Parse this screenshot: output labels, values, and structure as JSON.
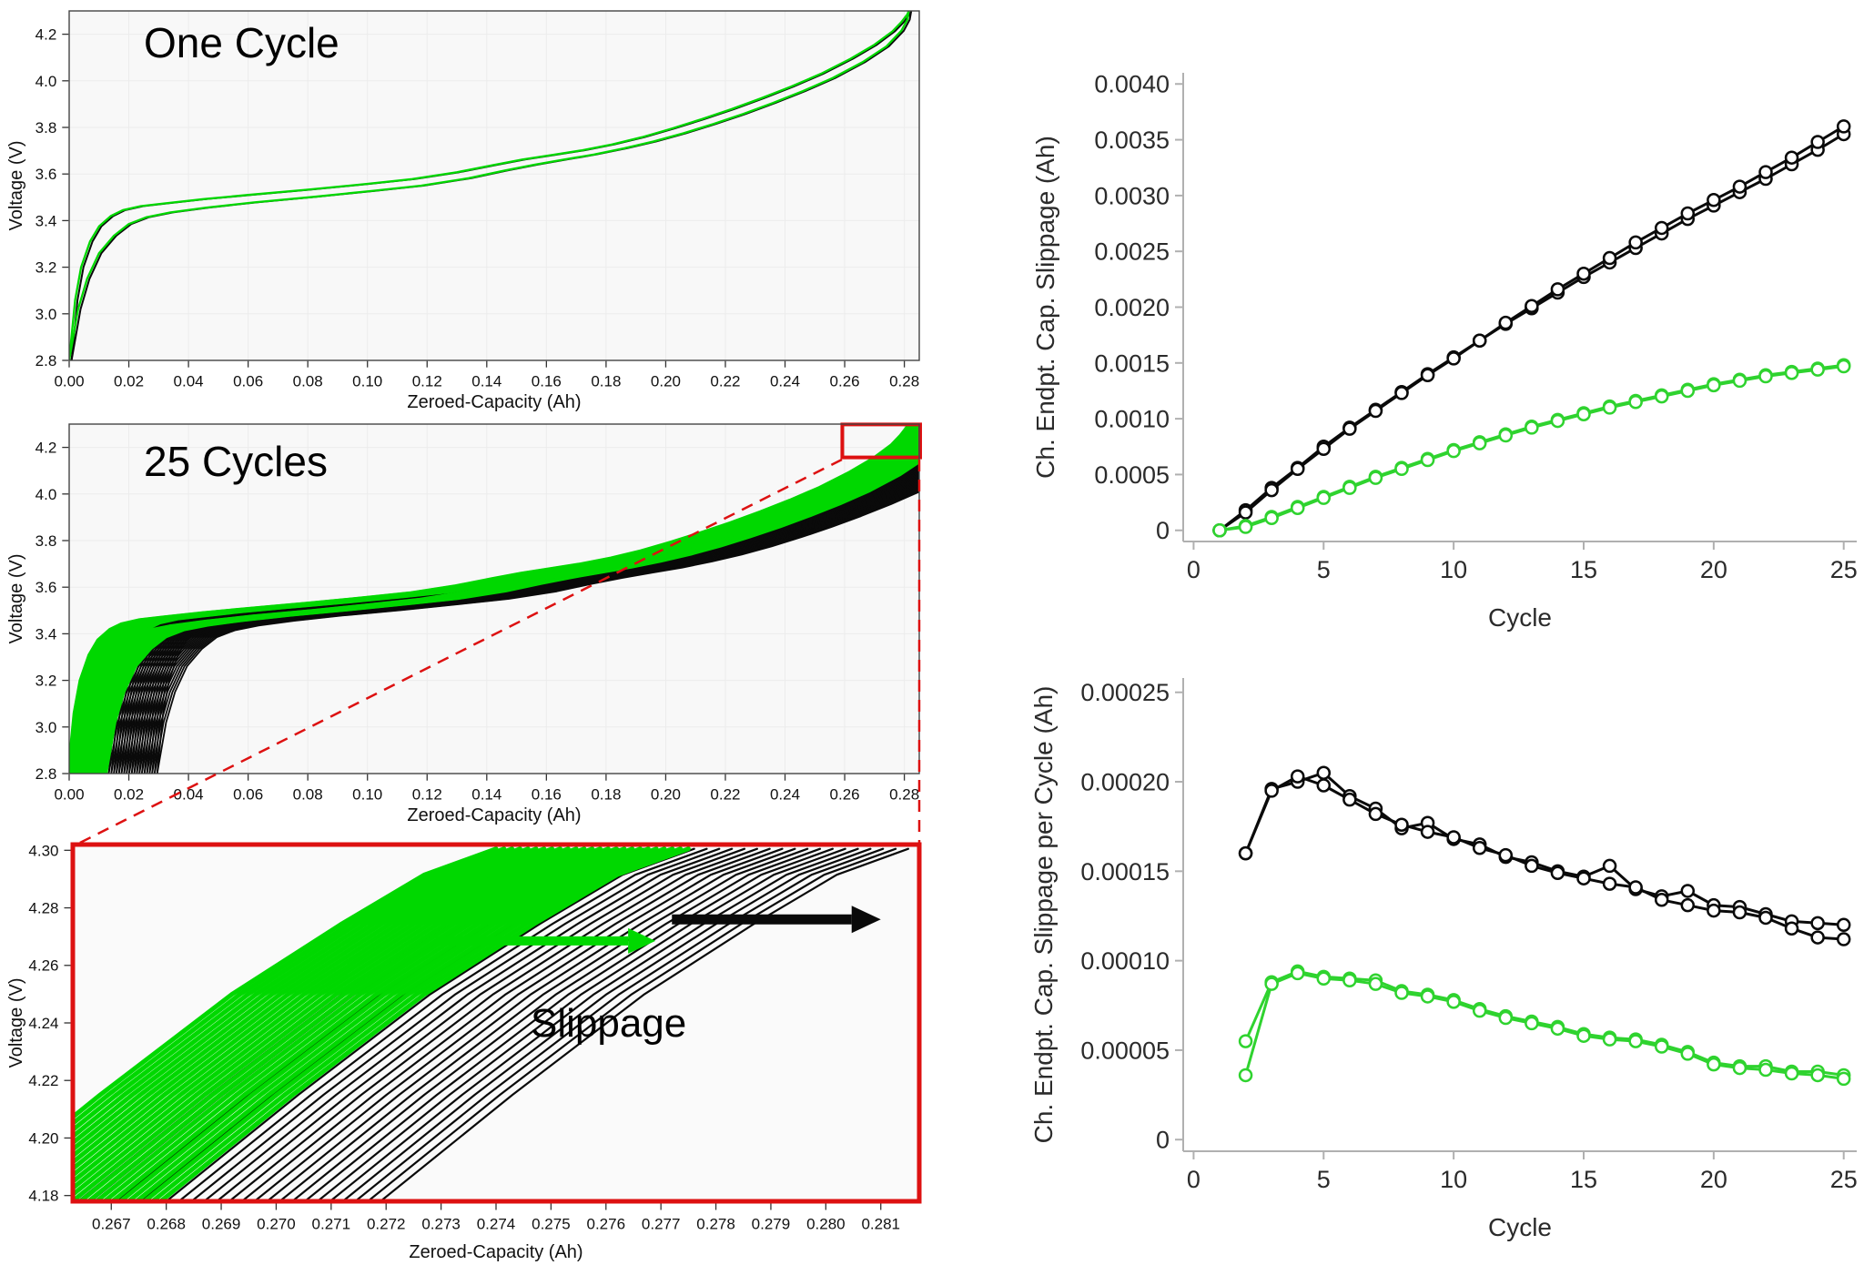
{
  "colors": {
    "green_left": "#00d800",
    "green_right": "#2fd32f",
    "black": "#0a0a0a",
    "red": "#dd1111",
    "grid": "#ececec",
    "axis_gray": "#b0b0b0"
  },
  "curves": {
    "upper": [
      [
        0,
        2.8
      ],
      [
        0.002,
        3.06
      ],
      [
        0.004,
        3.2
      ],
      [
        0.007,
        3.31
      ],
      [
        0.01,
        3.375
      ],
      [
        0.014,
        3.42
      ],
      [
        0.018,
        3.445
      ],
      [
        0.024,
        3.462
      ],
      [
        0.032,
        3.474
      ],
      [
        0.045,
        3.492
      ],
      [
        0.06,
        3.51
      ],
      [
        0.08,
        3.533
      ],
      [
        0.1,
        3.558
      ],
      [
        0.115,
        3.578
      ],
      [
        0.13,
        3.608
      ],
      [
        0.142,
        3.638
      ],
      [
        0.152,
        3.662
      ],
      [
        0.162,
        3.682
      ],
      [
        0.172,
        3.702
      ],
      [
        0.182,
        3.727
      ],
      [
        0.192,
        3.758
      ],
      [
        0.202,
        3.795
      ],
      [
        0.212,
        3.835
      ],
      [
        0.222,
        3.878
      ],
      [
        0.232,
        3.925
      ],
      [
        0.242,
        3.975
      ],
      [
        0.252,
        4.03
      ],
      [
        0.262,
        4.095
      ],
      [
        0.27,
        4.155
      ],
      [
        0.276,
        4.212
      ],
      [
        0.279,
        4.252
      ],
      [
        0.281,
        4.285
      ],
      [
        0.2815,
        4.3
      ]
    ],
    "lower": [
      [
        0,
        2.8
      ],
      [
        0.003,
        3.02
      ],
      [
        0.006,
        3.15
      ],
      [
        0.01,
        3.26
      ],
      [
        0.015,
        3.335
      ],
      [
        0.02,
        3.385
      ],
      [
        0.026,
        3.415
      ],
      [
        0.034,
        3.435
      ],
      [
        0.046,
        3.456
      ],
      [
        0.062,
        3.478
      ],
      [
        0.082,
        3.502
      ],
      [
        0.102,
        3.528
      ],
      [
        0.118,
        3.55
      ],
      [
        0.134,
        3.582
      ],
      [
        0.146,
        3.615
      ],
      [
        0.156,
        3.64
      ],
      [
        0.166,
        3.662
      ],
      [
        0.176,
        3.684
      ],
      [
        0.186,
        3.71
      ],
      [
        0.196,
        3.74
      ],
      [
        0.206,
        3.775
      ],
      [
        0.216,
        3.815
      ],
      [
        0.226,
        3.858
      ],
      [
        0.236,
        3.905
      ],
      [
        0.246,
        3.956
      ],
      [
        0.256,
        4.012
      ],
      [
        0.266,
        4.08
      ],
      [
        0.274,
        4.148
      ],
      [
        0.279,
        4.215
      ],
      [
        0.281,
        4.262
      ],
      [
        0.2815,
        4.3
      ]
    ],
    "inset_green": [
      [
        0.2631,
        4.158
      ],
      [
        0.2668,
        4.215
      ],
      [
        0.2692,
        4.25
      ],
      [
        0.2712,
        4.2745
      ],
      [
        0.2727,
        4.2915
      ],
      [
        0.274,
        4.3005
      ]
    ],
    "inset_black": [
      [
        0.2651,
        4.158
      ],
      [
        0.2688,
        4.215
      ],
      [
        0.2712,
        4.25
      ],
      [
        0.2732,
        4.2745
      ],
      [
        0.2747,
        4.2915
      ],
      [
        0.276,
        4.3005
      ]
    ]
  },
  "chart_data": [
    {
      "id": "one_cycle",
      "type": "line",
      "title": "One Cycle",
      "xlabel": "Zeroed-Capacity (Ah)",
      "ylabel": "Voltage (V)",
      "xlim": [
        0,
        0.285
      ],
      "ylim": [
        2.8,
        4.3
      ],
      "grid": true,
      "xticks": {
        "values": [
          0,
          0.02,
          0.04,
          0.06,
          0.08,
          0.1,
          0.12,
          0.14,
          0.16,
          0.18,
          0.2,
          0.22,
          0.24,
          0.26,
          0.28
        ],
        "labels": [
          "0.00",
          "0.02",
          "0.04",
          "0.06",
          "0.08",
          "0.10",
          "0.12",
          "0.14",
          "0.16",
          "0.18",
          "0.20",
          "0.22",
          "0.24",
          "0.26",
          "0.28"
        ]
      },
      "yticks": {
        "values": [
          2.8,
          3,
          3.2,
          3.4,
          3.6,
          3.8,
          4,
          4.2
        ],
        "labels": [
          "2.8",
          "3.0",
          "3.2",
          "3.4",
          "3.6",
          "3.8",
          "4.0",
          "4.2"
        ]
      },
      "series": [
        {
          "name": "black-cell-charge",
          "type": "line",
          "base": "upper",
          "dx": 0.0008,
          "color": "#0a0a0a",
          "width": 2
        },
        {
          "name": "black-cell-discharge",
          "type": "line",
          "base": "lower",
          "dx": 0.0008,
          "color": "#0a0a0a",
          "width": 2
        },
        {
          "name": "green-cell-charge",
          "type": "line",
          "base": "upper",
          "dx": 0,
          "color": "#00d800",
          "width": 2.3
        },
        {
          "name": "green-cell-discharge",
          "type": "line",
          "base": "lower",
          "dx": 0,
          "color": "#00d800",
          "width": 2.3
        }
      ]
    },
    {
      "id": "cycles_25",
      "type": "band",
      "title": "25 Cycles",
      "xlabel": "Zeroed-Capacity (Ah)",
      "ylabel": "Voltage (V)",
      "xlim": [
        0,
        0.285
      ],
      "ylim": [
        2.8,
        4.3
      ],
      "grid": true,
      "xticks": {
        "values": [
          0,
          0.02,
          0.04,
          0.06,
          0.08,
          0.1,
          0.12,
          0.14,
          0.16,
          0.18,
          0.2,
          0.22,
          0.24,
          0.26,
          0.28
        ],
        "labels": [
          "0.00",
          "0.02",
          "0.04",
          "0.06",
          "0.08",
          "0.10",
          "0.12",
          "0.14",
          "0.16",
          "0.18",
          "0.20",
          "0.22",
          "0.24",
          "0.26",
          "0.28"
        ]
      },
      "yticks": {
        "values": [
          2.8,
          3,
          3.2,
          3.4,
          3.6,
          3.8,
          4,
          4.2
        ],
        "labels": [
          "2.8",
          "3.0",
          "3.2",
          "3.4",
          "3.6",
          "3.8",
          "4.0",
          "4.2"
        ]
      },
      "series": [
        {
          "name": "black-cell-cycles",
          "type": "band",
          "base": "upper",
          "color": "#0a0a0a",
          "width": 1.8,
          "repeats": 25,
          "dx0": 0.009,
          "dx1": 0.0295
        },
        {
          "name": "black-cell-cycles-lower",
          "type": "band",
          "base": "lower",
          "color": "#0a0a0a",
          "width": 1.8,
          "repeats": 25,
          "dx0": 0.009,
          "dx1": 0.0295
        },
        {
          "name": "green-cell-cycles",
          "type": "band",
          "base": "upper",
          "color": "#00d800",
          "width": 2.2,
          "repeats": 25,
          "dx0": -0.0005,
          "dx1": 0.0125
        },
        {
          "name": "green-cell-cycles-lower",
          "type": "band",
          "base": "lower",
          "color": "#00d800",
          "width": 2.2,
          "repeats": 25,
          "dx0": -0.0005,
          "dx1": 0.0125
        }
      ],
      "annotations": [
        {
          "type": "rect",
          "x": [
            0.2592,
            0.2853
          ],
          "y": [
            4.157,
            4.2985
          ],
          "color": "#dd1111",
          "width": 4
        }
      ]
    },
    {
      "id": "inset_zoom",
      "type": "band",
      "annotation_label": "Slippage",
      "xlabel": "Zeroed-Capacity (Ah)",
      "ylabel": "Voltage (V)",
      "xlim": [
        0.2663,
        0.2817
      ],
      "ylim": [
        4.178,
        4.302
      ],
      "grid": false,
      "xticks": {
        "values": [
          0.267,
          0.268,
          0.269,
          0.27,
          0.271,
          0.272,
          0.273,
          0.274,
          0.275,
          0.276,
          0.277,
          0.278,
          0.279,
          0.28,
          0.281
        ],
        "labels": [
          "0.267",
          "0.268",
          "0.269",
          "0.270",
          "0.271",
          "0.272",
          "0.273",
          "0.274",
          "0.275",
          "0.276",
          "0.277",
          "0.278",
          "0.279",
          "0.280",
          "0.281"
        ]
      },
      "yticks": {
        "values": [
          4.18,
          4.2,
          4.22,
          4.24,
          4.26,
          4.28,
          4.3
        ],
        "labels": [
          "4.18",
          "4.20",
          "4.22",
          "4.24",
          "4.26",
          "4.28",
          "4.30"
        ]
      },
      "series": [
        {
          "name": "black-cell-zoom",
          "type": "band",
          "base": "inset_black",
          "color": "#0a0a0a",
          "width": 2.2,
          "repeats": 25,
          "dx0": 0,
          "dx1": 0.0055
        },
        {
          "name": "green-cell-zoom",
          "type": "band",
          "base": "inset_green",
          "color": "#00d800",
          "width": 5,
          "repeats": 25,
          "dx0": 0,
          "dx1": 0.0035
        }
      ],
      "annotations": [
        {
          "type": "arrow",
          "from": [
            0.2729,
            4.2685
          ],
          "to": [
            0.2769,
            4.2685
          ],
          "color": "#00d800",
          "shaft": 10,
          "head_l": 30,
          "head_w": 28
        },
        {
          "type": "arrow",
          "from": [
            0.2772,
            4.276
          ],
          "to": [
            0.281,
            4.276
          ],
          "color": "#0a0a0a",
          "shaft": 11,
          "head_l": 32,
          "head_w": 30
        }
      ]
    },
    {
      "id": "cum_slippage",
      "type": "line",
      "xlabel": "Cycle",
      "ylabel": "Ch. Endpt. Cap. Slippage (Ah)",
      "xlim": [
        -0.4,
        25.5
      ],
      "ylim": [
        -0.0001,
        0.0041
      ],
      "grid": false,
      "xticks": {
        "values": [
          0,
          5,
          10,
          15,
          20,
          25
        ],
        "labels": [
          "0",
          "5",
          "10",
          "15",
          "20",
          "25"
        ]
      },
      "yticks": {
        "values": [
          0,
          0.0005,
          0.001,
          0.0015,
          0.002,
          0.0025,
          0.003,
          0.0035,
          0.004
        ],
        "labels": [
          "0",
          "0.0005",
          "0.0010",
          "0.0015",
          "0.0020",
          "0.0025",
          "0.0030",
          "0.0035",
          "0.0040"
        ]
      },
      "series": [
        {
          "name": "black-cell-1",
          "type": "line",
          "marker": "circle",
          "marker_r": 6.5,
          "x_start": 1,
          "color": "#0a0a0a",
          "width": 3,
          "values": [
            0,
            0.00018,
            0.00038,
            0.00056,
            0.00075,
            0.00092,
            0.00108,
            0.00124,
            0.0014,
            0.00155,
            0.0017,
            0.00185,
            0.00199,
            0.00213,
            0.00227,
            0.0024,
            0.00253,
            0.00266,
            0.00279,
            0.00291,
            0.00303,
            0.00315,
            0.00328,
            0.00341,
            0.00355
          ]
        },
        {
          "name": "black-cell-2",
          "type": "line",
          "marker": "circle",
          "marker_r": 6.5,
          "x_start": 1,
          "color": "#0a0a0a",
          "width": 3,
          "values": [
            0,
            0.00016,
            0.00036,
            0.00055,
            0.00073,
            0.00091,
            0.00107,
            0.00123,
            0.00139,
            0.00154,
            0.0017,
            0.00186,
            0.00201,
            0.00216,
            0.0023,
            0.00244,
            0.00258,
            0.00271,
            0.00284,
            0.00296,
            0.00308,
            0.00321,
            0.00334,
            0.00348,
            0.00362
          ]
        },
        {
          "name": "green-cell-1",
          "type": "line",
          "marker": "circle",
          "marker_r": 6.5,
          "x_start": 1,
          "color": "#2fd32f",
          "width": 3,
          "values": [
            0,
            4e-05,
            0.00012,
            0.00021,
            0.0003,
            0.00039,
            0.00048,
            0.00056,
            0.00064,
            0.00072,
            0.00079,
            0.00086,
            0.00093,
            0.00099,
            0.00105,
            0.00111,
            0.00116,
            0.00121,
            0.00126,
            0.00131,
            0.00135,
            0.00139,
            0.00142,
            0.00145,
            0.00148
          ]
        },
        {
          "name": "green-cell-2",
          "type": "line",
          "marker": "circle",
          "marker_r": 6.5,
          "x_start": 1,
          "color": "#2fd32f",
          "width": 3,
          "values": [
            0,
            3e-05,
            0.00011,
            0.0002,
            0.00029,
            0.00038,
            0.00047,
            0.00055,
            0.00063,
            0.00071,
            0.00078,
            0.00085,
            0.00092,
            0.00098,
            0.00104,
            0.0011,
            0.00115,
            0.0012,
            0.00125,
            0.0013,
            0.00134,
            0.00138,
            0.00141,
            0.00144,
            0.00147
          ]
        }
      ]
    },
    {
      "id": "per_cycle_slippage",
      "type": "line",
      "xlabel": "Cycle",
      "ylabel": "Ch. Endpt. Cap. Slippage per Cycle (Ah)",
      "xlim": [
        -0.4,
        25.5
      ],
      "ylim": [
        -6.5e-06,
        0.000258
      ],
      "grid": false,
      "xticks": {
        "values": [
          0,
          5,
          10,
          15,
          20,
          25
        ],
        "labels": [
          "0",
          "5",
          "10",
          "15",
          "20",
          "25"
        ]
      },
      "yticks": {
        "values": [
          0,
          5e-05,
          0.0001,
          0.00015,
          0.0002,
          0.00025
        ],
        "labels": [
          "0",
          "0.00005",
          "0.00010",
          "0.00015",
          "0.00020",
          "0.00025"
        ]
      },
      "series": [
        {
          "name": "black-cell-1",
          "type": "line",
          "marker": "circle",
          "marker_r": 6.5,
          "x_start": 2,
          "color": "#0a0a0a",
          "width": 3,
          "values": [
            0.00016,
            0.000196,
            0.0002,
            0.000205,
            0.000192,
            0.000185,
            0.000174,
            0.000177,
            0.000168,
            0.000165,
            0.000158,
            0.000155,
            0.00015,
            0.000147,
            0.000153,
            0.00014,
            0.000136,
            0.000139,
            0.000131,
            0.00013,
            0.000126,
            0.000122,
            0.000121,
            0.00012
          ]
        },
        {
          "name": "black-cell-2",
          "type": "line",
          "marker": "circle",
          "marker_r": 6.5,
          "x_start": 2,
          "color": "#0a0a0a",
          "width": 3,
          "values": [
            0.00016,
            0.000195,
            0.000203,
            0.000198,
            0.00019,
            0.000182,
            0.000176,
            0.000172,
            0.000169,
            0.000163,
            0.000159,
            0.000153,
            0.000149,
            0.000146,
            0.000143,
            0.000141,
            0.000134,
            0.000131,
            0.000128,
            0.000127,
            0.000124,
            0.000118,
            0.000113,
            0.000112
          ]
        },
        {
          "name": "green-cell-1",
          "type": "line",
          "marker": "circle",
          "marker_r": 6.5,
          "x_start": 2,
          "color": "#2fd32f",
          "width": 3,
          "values": [
            5.5e-05,
            8.8e-05,
            9.4e-05,
            9.1e-05,
            9e-05,
            8.9e-05,
            8.3e-05,
            8.1e-05,
            7.8e-05,
            7.3e-05,
            6.9e-05,
            6.6e-05,
            6.3e-05,
            5.9e-05,
            5.7e-05,
            5.6e-05,
            5.3e-05,
            4.9e-05,
            4.3e-05,
            4.1e-05,
            4.1e-05,
            3.8e-05,
            3.8e-05,
            3.6e-05
          ]
        },
        {
          "name": "green-cell-2",
          "type": "line",
          "marker": "circle",
          "marker_r": 6.5,
          "x_start": 2,
          "color": "#2fd32f",
          "width": 3,
          "values": [
            3.6e-05,
            8.7e-05,
            9.3e-05,
            9e-05,
            8.9e-05,
            8.7e-05,
            8.2e-05,
            8e-05,
            7.7e-05,
            7.2e-05,
            6.8e-05,
            6.5e-05,
            6.2e-05,
            5.8e-05,
            5.6e-05,
            5.5e-05,
            5.2e-05,
            4.8e-05,
            4.2e-05,
            4e-05,
            3.9e-05,
            3.7e-05,
            3.6e-05,
            3.4e-05
          ]
        }
      ]
    }
  ]
}
